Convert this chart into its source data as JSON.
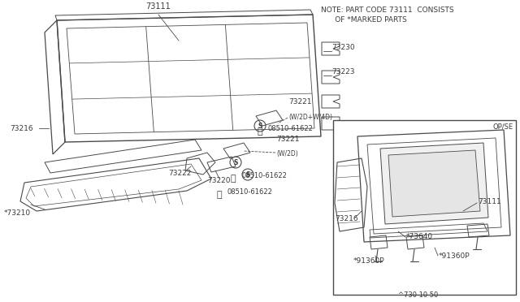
{
  "bg_color": "#ffffff",
  "line_color": "#4a4a4a",
  "text_color": "#3a3a3a",
  "note_text": "NOTE: PART CODE 73111  CONSISTS\n       OF *MARKED PARTS",
  "footer_text": "^730 10 50",
  "op_se_label": "OP/SE",
  "figsize": [
    6.4,
    3.72
  ],
  "dpi": 100
}
